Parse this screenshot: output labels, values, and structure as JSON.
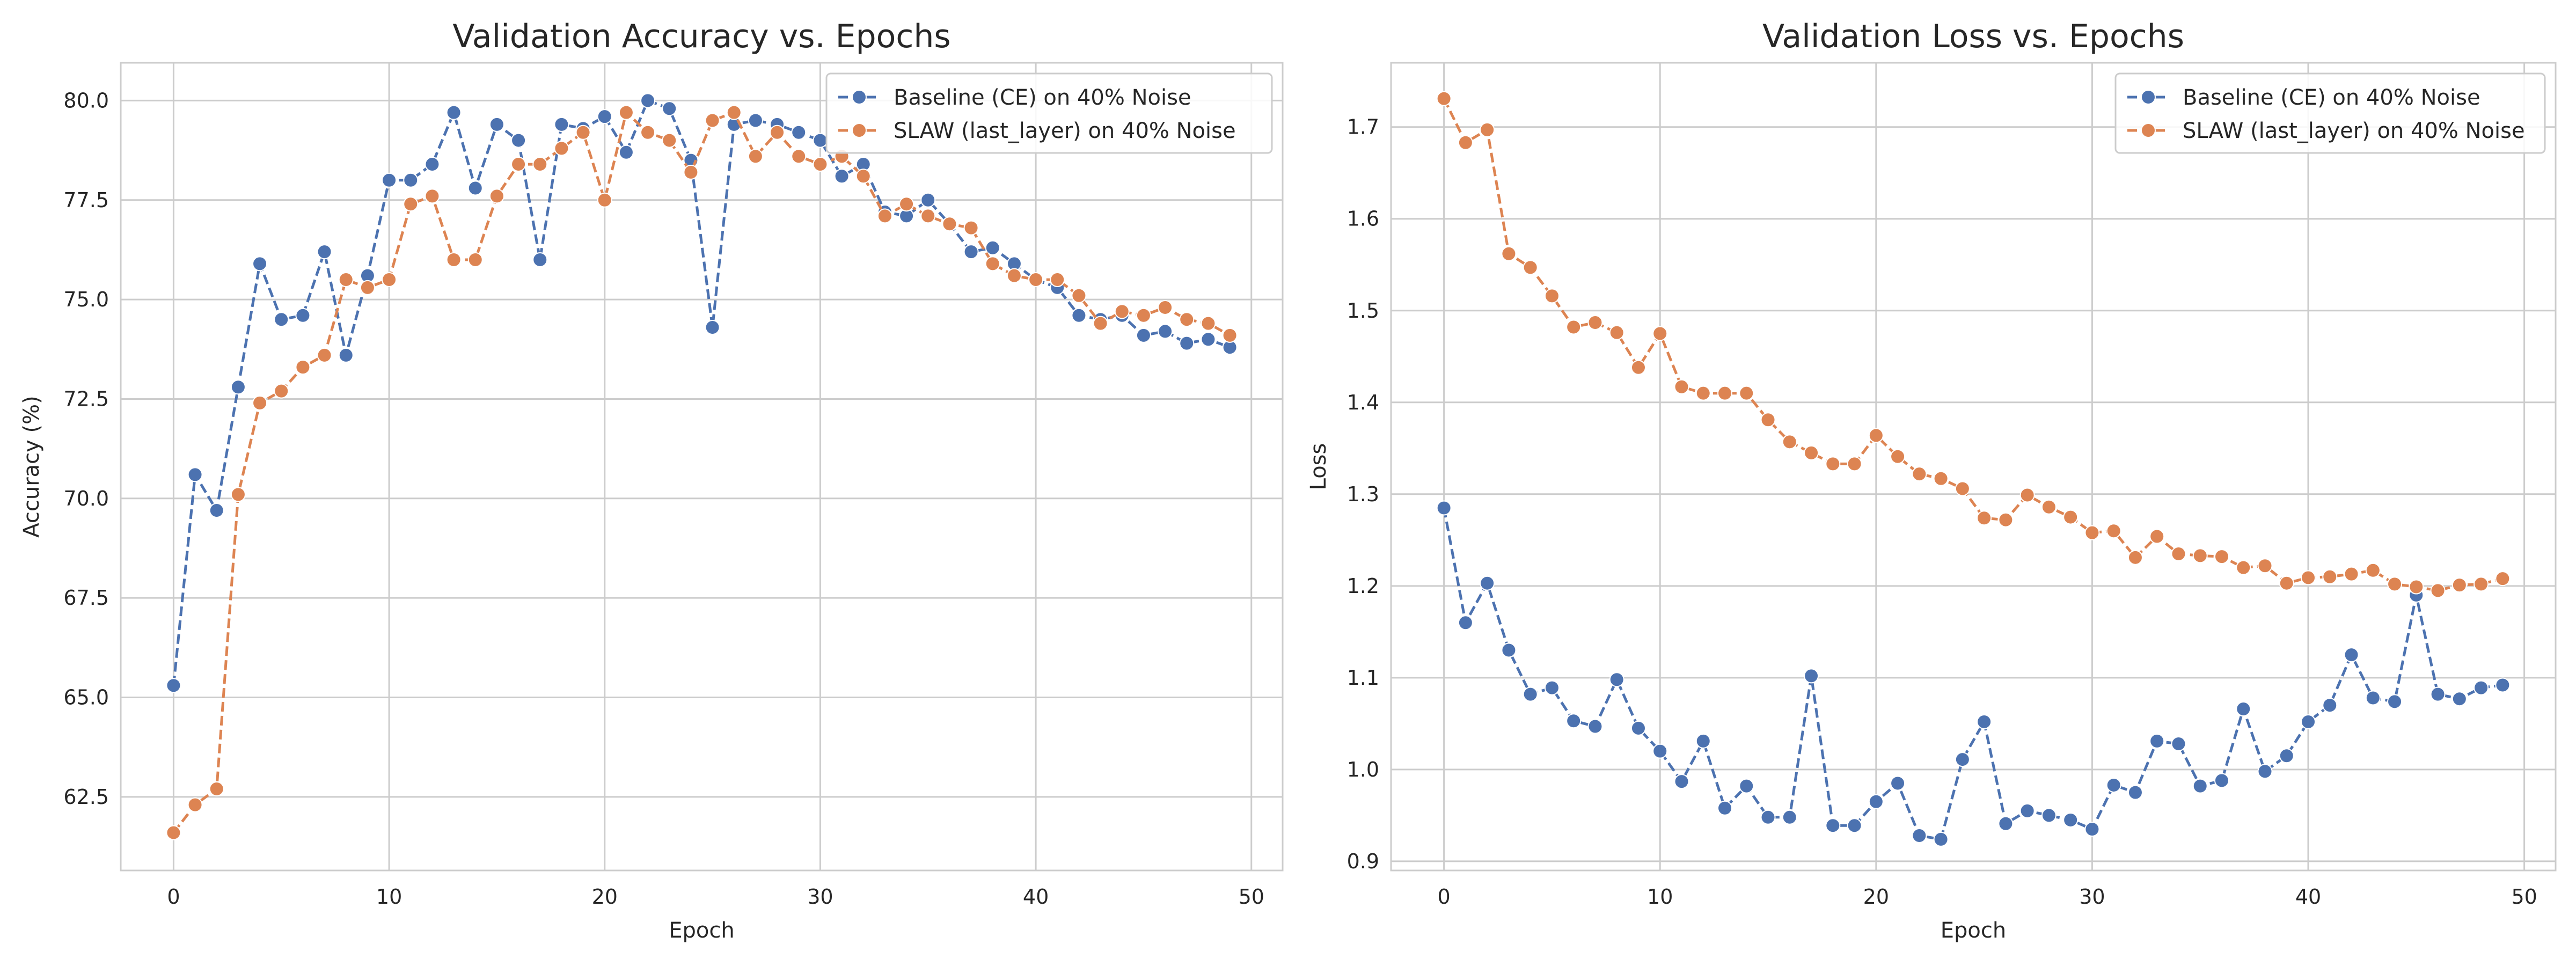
{
  "chart_data": [
    {
      "type": "line",
      "title": "Validation Accuracy vs. Epochs",
      "xlabel": "Epoch",
      "ylabel": "Accuracy (%)",
      "xlim": [
        -2.45,
        51.45
      ],
      "ylim": [
        60.65,
        80.95
      ],
      "xticks": [
        0,
        10,
        20,
        30,
        40,
        50
      ],
      "yticks": [
        62.5,
        65.0,
        67.5,
        70.0,
        72.5,
        75.0,
        77.5,
        80.0
      ],
      "ytick_decimals": 1,
      "grid": true,
      "legend_position": "top-right",
      "series": [
        {
          "name": "Baseline (CE) on 40% Noise",
          "color": "#4c72b0",
          "x": [
            0,
            1,
            2,
            3,
            4,
            5,
            6,
            7,
            8,
            9,
            10,
            11,
            12,
            13,
            14,
            15,
            16,
            17,
            18,
            19,
            20,
            21,
            22,
            23,
            24,
            25,
            26,
            27,
            28,
            29,
            30,
            31,
            32,
            33,
            34,
            35,
            36,
            37,
            38,
            39,
            40,
            41,
            42,
            43,
            44,
            45,
            46,
            47,
            48,
            49
          ],
          "values": [
            65.3,
            70.6,
            69.7,
            72.8,
            75.9,
            74.5,
            74.6,
            76.2,
            73.6,
            75.6,
            78.0,
            78.0,
            78.4,
            79.7,
            77.8,
            79.4,
            79.0,
            76.0,
            79.4,
            79.3,
            79.6,
            78.7,
            80.0,
            79.8,
            78.5,
            74.3,
            79.4,
            79.5,
            79.4,
            79.2,
            79.0,
            78.1,
            78.4,
            77.2,
            77.1,
            77.5,
            76.9,
            76.2,
            76.3,
            75.9,
            75.5,
            75.3,
            74.6,
            74.5,
            74.6,
            74.1,
            74.2,
            73.9,
            74.0,
            73.8
          ]
        },
        {
          "name": "SLAW (last_layer) on 40% Noise",
          "color": "#dd8452",
          "x": [
            0,
            1,
            2,
            3,
            4,
            5,
            6,
            7,
            8,
            9,
            10,
            11,
            12,
            13,
            14,
            15,
            16,
            17,
            18,
            19,
            20,
            21,
            22,
            23,
            24,
            25,
            26,
            27,
            28,
            29,
            30,
            31,
            32,
            33,
            34,
            35,
            36,
            37,
            38,
            39,
            40,
            41,
            42,
            43,
            44,
            45,
            46,
            47,
            48,
            49
          ],
          "values": [
            61.6,
            62.3,
            62.7,
            70.1,
            72.4,
            72.7,
            73.3,
            73.6,
            75.5,
            75.3,
            75.5,
            77.4,
            77.6,
            76.0,
            76.0,
            77.6,
            78.4,
            78.4,
            78.8,
            79.2,
            77.5,
            79.7,
            79.2,
            79.0,
            78.2,
            79.5,
            79.7,
            78.6,
            79.2,
            78.6,
            78.4,
            78.6,
            78.1,
            77.1,
            77.4,
            77.1,
            76.9,
            76.8,
            75.9,
            75.6,
            75.5,
            75.5,
            75.1,
            74.4,
            74.7,
            74.6,
            74.8,
            74.5,
            74.4,
            74.1
          ]
        }
      ]
    },
    {
      "type": "line",
      "title": "Validation Loss vs. Epochs",
      "xlabel": "Epoch",
      "ylabel": "Loss",
      "xlim": [
        -2.45,
        51.45
      ],
      "ylim": [
        0.89,
        1.77
      ],
      "xticks": [
        0,
        10,
        20,
        30,
        40,
        50
      ],
      "yticks": [
        0.9,
        1.0,
        1.1,
        1.2,
        1.3,
        1.4,
        1.5,
        1.6,
        1.7
      ],
      "ytick_decimals": 1,
      "grid": true,
      "legend_position": "top-right",
      "series": [
        {
          "name": "Baseline (CE) on 40% Noise",
          "color": "#4c72b0",
          "x": [
            0,
            1,
            2,
            3,
            4,
            5,
            6,
            7,
            8,
            9,
            10,
            11,
            12,
            13,
            14,
            15,
            16,
            17,
            18,
            19,
            20,
            21,
            22,
            23,
            24,
            25,
            26,
            27,
            28,
            29,
            30,
            31,
            32,
            33,
            34,
            35,
            36,
            37,
            38,
            39,
            40,
            41,
            42,
            43,
            44,
            45,
            46,
            47,
            48,
            49
          ],
          "values": [
            1.285,
            1.16,
            1.203,
            1.13,
            1.082,
            1.089,
            1.053,
            1.047,
            1.098,
            1.045,
            1.02,
            0.987,
            1.031,
            0.958,
            0.982,
            0.948,
            0.948,
            1.102,
            0.939,
            0.939,
            0.965,
            0.985,
            0.928,
            0.924,
            1.011,
            1.052,
            0.941,
            0.955,
            0.95,
            0.945,
            0.935,
            0.983,
            0.975,
            1.031,
            1.028,
            0.982,
            0.988,
            1.066,
            0.998,
            1.015,
            1.052,
            1.07,
            1.125,
            1.078,
            1.074,
            1.19,
            1.082,
            1.077,
            1.089,
            1.092
          ]
        },
        {
          "name": "SLAW (last_layer) on 40% Noise",
          "color": "#dd8452",
          "x": [
            0,
            1,
            2,
            3,
            4,
            5,
            6,
            7,
            8,
            9,
            10,
            11,
            12,
            13,
            14,
            15,
            16,
            17,
            18,
            19,
            20,
            21,
            22,
            23,
            24,
            25,
            26,
            27,
            28,
            29,
            30,
            31,
            32,
            33,
            34,
            35,
            36,
            37,
            38,
            39,
            40,
            41,
            42,
            43,
            44,
            45,
            46,
            47,
            48,
            49
          ],
          "values": [
            1.731,
            1.683,
            1.697,
            1.562,
            1.547,
            1.516,
            1.482,
            1.487,
            1.476,
            1.438,
            1.475,
            1.417,
            1.41,
            1.41,
            1.41,
            1.381,
            1.357,
            1.345,
            1.333,
            1.333,
            1.364,
            1.341,
            1.322,
            1.317,
            1.306,
            1.274,
            1.272,
            1.299,
            1.286,
            1.275,
            1.258,
            1.26,
            1.231,
            1.254,
            1.235,
            1.233,
            1.232,
            1.22,
            1.222,
            1.203,
            1.209,
            1.21,
            1.213,
            1.217,
            1.202,
            1.199,
            1.195,
            1.201,
            1.202,
            1.208
          ]
        }
      ]
    }
  ]
}
